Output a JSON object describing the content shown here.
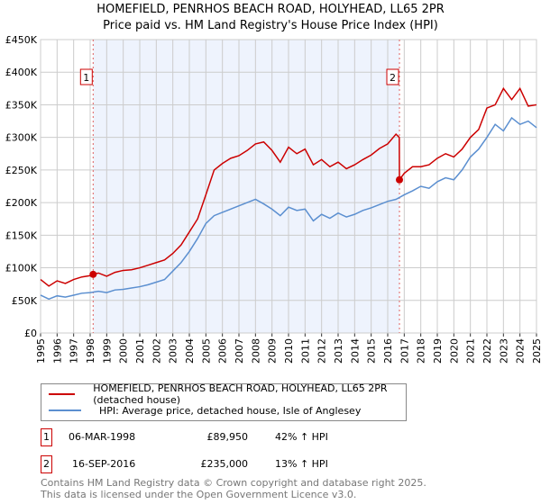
{
  "chart_data": {
    "type": "line",
    "title": "HOMEFIELD, PENRHOS BEACH ROAD, HOLYHEAD, LL65 2PR",
    "subtitle": "Price paid vs. HM Land Registry's House Price Index (HPI)",
    "xlim": [
      1995,
      2025
    ],
    "ylim": [
      0,
      450000
    ],
    "x_ticks": [
      "1995",
      "1996",
      "1997",
      "1998",
      "1999",
      "2000",
      "2001",
      "2002",
      "2003",
      "2004",
      "2005",
      "2006",
      "2007",
      "2008",
      "2009",
      "2010",
      "2011",
      "2012",
      "2013",
      "2014",
      "2015",
      "2016",
      "2017",
      "2018",
      "2019",
      "2020",
      "2021",
      "2022",
      "2023",
      "2024",
      "2025"
    ],
    "y_ticks": [
      {
        "v": 0,
        "label": "£0"
      },
      {
        "v": 50000,
        "label": "£50K"
      },
      {
        "v": 100000,
        "label": "£100K"
      },
      {
        "v": 150000,
        "label": "£150K"
      },
      {
        "v": 200000,
        "label": "£200K"
      },
      {
        "v": 250000,
        "label": "£250K"
      },
      {
        "v": 300000,
        "label": "£300K"
      },
      {
        "v": 350000,
        "label": "£350K"
      },
      {
        "v": 400000,
        "label": "£400K"
      },
      {
        "v": 450000,
        "label": "£450K"
      }
    ],
    "grid": true,
    "shaded_range": [
      1998.18,
      2016.71
    ],
    "series": [
      {
        "name": "HOMEFIELD, PENRHOS BEACH ROAD, HOLYHEAD, LL65 2PR (detached house)",
        "color": "#cc0000",
        "x": [
          1995,
          1995.5,
          1996,
          1996.5,
          1997,
          1997.5,
          1998,
          1998.18,
          1998.5,
          1999,
          1999.5,
          2000,
          2000.5,
          2001,
          2001.5,
          2002,
          2002.5,
          2003,
          2003.5,
          2004,
          2004.5,
          2005,
          2005.5,
          2006,
          2006.5,
          2007,
          2007.5,
          2008,
          2008.5,
          2009,
          2009.5,
          2010,
          2010.5,
          2011,
          2011.5,
          2012,
          2012.5,
          2013,
          2013.5,
          2014,
          2014.5,
          2015,
          2015.5,
          2016,
          2016.5,
          2016.7,
          2016.71,
          2017,
          2017.5,
          2018,
          2018.5,
          2019,
          2019.5,
          2020,
          2020.5,
          2021,
          2021.5,
          2022,
          2022.5,
          2023,
          2023.5,
          2024,
          2024.5,
          2025
        ],
        "y": [
          82000,
          72000,
          80000,
          76000,
          82000,
          86000,
          88000,
          89950,
          92000,
          87000,
          93000,
          96000,
          97000,
          100000,
          104000,
          108000,
          112000,
          122000,
          135000,
          155000,
          175000,
          212000,
          250000,
          260000,
          268000,
          272000,
          280000,
          290000,
          293000,
          280000,
          262000,
          285000,
          275000,
          282000,
          258000,
          266000,
          255000,
          262000,
          252000,
          258000,
          266000,
          273000,
          283000,
          290000,
          305000,
          300000,
          235000,
          245000,
          255000,
          255000,
          258000,
          268000,
          275000,
          270000,
          282000,
          300000,
          312000,
          345000,
          350000,
          375000,
          358000,
          375000,
          348000,
          350000
        ]
      },
      {
        "name": "HPI: Average price, detached house, Isle of Anglesey",
        "color": "#5b8fd0",
        "x": [
          1995,
          1995.5,
          1996,
          1996.5,
          1997,
          1997.5,
          1998,
          1998.5,
          1999,
          1999.5,
          2000,
          2000.5,
          2001,
          2001.5,
          2002,
          2002.5,
          2003,
          2003.5,
          2004,
          2004.5,
          2005,
          2005.5,
          2006,
          2006.5,
          2007,
          2007.5,
          2008,
          2008.5,
          2009,
          2009.5,
          2010,
          2010.5,
          2011,
          2011.5,
          2012,
          2012.5,
          2013,
          2013.5,
          2014,
          2014.5,
          2015,
          2015.5,
          2016,
          2016.5,
          2017,
          2017.5,
          2018,
          2018.5,
          2019,
          2019.5,
          2020,
          2020.5,
          2021,
          2021.5,
          2022,
          2022.5,
          2023,
          2023.5,
          2024,
          2024.5,
          2025
        ],
        "y": [
          58000,
          52000,
          57000,
          55000,
          58000,
          61000,
          62000,
          64000,
          62000,
          66000,
          67000,
          69000,
          71000,
          74000,
          78000,
          82000,
          95000,
          108000,
          125000,
          145000,
          168000,
          180000,
          185000,
          190000,
          195000,
          200000,
          205000,
          198000,
          190000,
          180000,
          193000,
          188000,
          190000,
          172000,
          182000,
          176000,
          184000,
          178000,
          182000,
          188000,
          192000,
          197000,
          202000,
          205000,
          212000,
          218000,
          225000,
          222000,
          232000,
          238000,
          235000,
          250000,
          270000,
          282000,
          300000,
          320000,
          310000,
          330000,
          320000,
          325000,
          315000
        ]
      }
    ],
    "annotations": [
      {
        "label": "1",
        "x": 1998.18,
        "y": 89950
      },
      {
        "label": "2",
        "x": 2016.71,
        "y": 235000
      }
    ]
  },
  "legend": {
    "items": [
      "HOMEFIELD, PENRHOS BEACH ROAD, HOLYHEAD, LL65 2PR (detached house)",
      "HPI: Average price, detached house, Isle of Anglesey"
    ]
  },
  "sales": [
    {
      "num": "1",
      "date": "06-MAR-1998",
      "price": "£89,950",
      "hpi": "42% ↑ HPI"
    },
    {
      "num": "2",
      "date": "16-SEP-2016",
      "price": "£235,000",
      "hpi": "13% ↑ HPI"
    }
  ],
  "footer": {
    "line1": "Contains HM Land Registry data © Crown copyright and database right 2025.",
    "line2": "This data is licensed under the Open Government Licence v3.0."
  }
}
